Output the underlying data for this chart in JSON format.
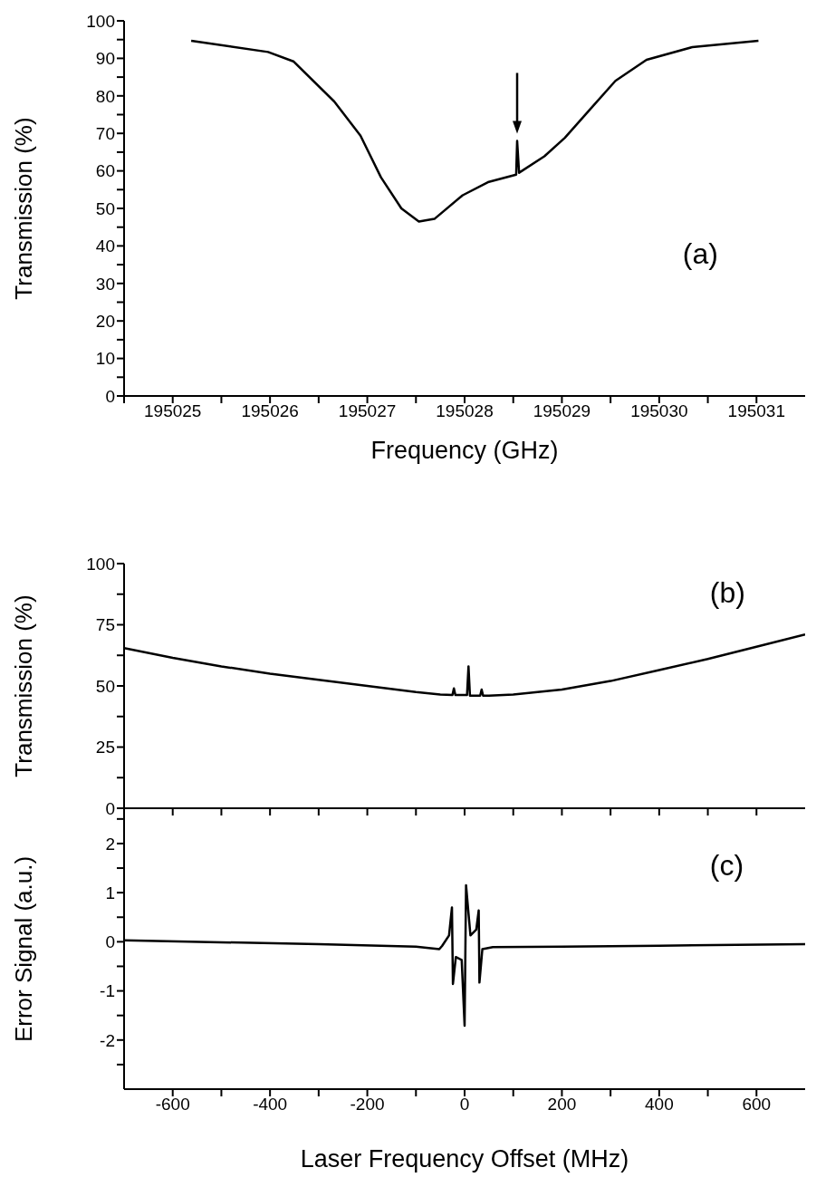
{
  "chart_data": [
    {
      "type": "line",
      "ylabel": "Transmission (%)",
      "xlabel": "Frequency (GHz)",
      "xlim": [
        195024.5,
        195031.5
      ],
      "xticks": [
        {
          "value": 195024.5,
          "label": null
        },
        195025,
        {
          "value": 195025.5,
          "label": null
        },
        195026,
        {
          "value": 195026.5,
          "label": null
        },
        195027,
        {
          "value": 195027.5,
          "label": null
        },
        195028,
        {
          "value": 195028.5,
          "label": null
        },
        195029,
        {
          "value": 195029.5,
          "label": null
        },
        195030,
        {
          "value": 195030.5,
          "label": null
        },
        195031
      ],
      "ylim": [
        0,
        100
      ],
      "yticks": [
        0,
        {
          "value": 5,
          "label": null
        },
        10,
        {
          "value": 15,
          "label": null
        },
        20,
        {
          "value": 25,
          "label": null
        },
        30,
        {
          "value": 35,
          "label": null
        },
        40,
        {
          "value": 45,
          "label": null
        },
        50,
        {
          "value": 55,
          "label": null
        },
        60,
        {
          "value": 65,
          "label": null
        },
        70,
        {
          "value": 75,
          "label": null
        },
        80,
        {
          "value": 85,
          "label": null
        },
        90,
        {
          "value": 95,
          "label": null
        },
        100
      ],
      "annotations": [
        "(a)"
      ],
      "series": [
        {
          "color": "#000000",
          "x": [
            195025.19,
            195025.98,
            195026.24,
            195026.66,
            195026.93,
            195027.14,
            195027.35,
            195027.53,
            195027.69,
            195027.98,
            195028.24,
            195028.53,
            195028.54,
            195028.56,
            195028.82,
            195029.03,
            195029.29,
            195029.55,
            195029.87,
            195030.34,
            195031.02
          ],
          "values": [
            94.7,
            91.7,
            89.2,
            78.5,
            69.4,
            58.3,
            50,
            46.5,
            47.2,
            53.5,
            57,
            59,
            68,
            59.5,
            63.9,
            68.8,
            76.4,
            84,
            89.6,
            93,
            94.7
          ]
        }
      ]
    },
    {
      "type": "line",
      "ylabel": "Transmission (%)",
      "tick_labels": "y",
      "xlim": [
        -700,
        700
      ],
      "xticks": [
        {
          "value": -600,
          "label": null
        },
        {
          "value": -500,
          "label": null
        },
        {
          "value": -400,
          "label": null
        },
        {
          "value": -300,
          "label": null
        },
        {
          "value": -200,
          "label": null
        },
        {
          "value": -100,
          "label": null
        },
        {
          "value": 0,
          "label": null
        },
        {
          "value": 100,
          "label": null
        },
        {
          "value": 200,
          "label": null
        },
        {
          "value": 300,
          "label": null
        },
        {
          "value": 400,
          "label": null
        },
        {
          "value": 500,
          "label": null
        },
        {
          "value": 600,
          "label": null
        }
      ],
      "ylim": [
        0,
        100
      ],
      "yticks": [
        0,
        {
          "value": 12.5,
          "label": null
        },
        25,
        {
          "value": 37.5,
          "label": null
        },
        50,
        {
          "value": 62.5,
          "label": null
        },
        75,
        {
          "value": 87.5,
          "label": null
        },
        100
      ],
      "annotations": [
        "(b)"
      ],
      "series": [
        {
          "color": "#000000",
          "x": [
            -700,
            -600,
            -500,
            -400,
            -300,
            -200,
            -100,
            -50,
            -25,
            -22,
            -19,
            0,
            5,
            8,
            11,
            32,
            35,
            38,
            50,
            100,
            200,
            300,
            400,
            500,
            600,
            700
          ],
          "values": [
            65.5,
            61.5,
            58,
            55,
            52.5,
            50,
            47.5,
            46.5,
            46.3,
            49,
            46.3,
            46.3,
            46.3,
            58,
            46,
            46,
            48.5,
            46,
            46,
            46.5,
            48.5,
            52,
            56.5,
            61,
            66,
            71
          ]
        }
      ]
    },
    {
      "type": "line",
      "ylabel": "Error Signal (a.u.)",
      "xlabel": "Laser Frequency Offset (MHz)",
      "xlim": [
        -700,
        700
      ],
      "xticks": [
        -600,
        {
          "value": -500,
          "label": null
        },
        -400,
        {
          "value": -300,
          "label": null
        },
        -200,
        {
          "value": -100,
          "label": null
        },
        0,
        {
          "value": 100,
          "label": null
        },
        200,
        {
          "value": 300,
          "label": null
        },
        400,
        {
          "value": 500,
          "label": null
        },
        600
      ],
      "ylim": [
        -3,
        2.7
      ],
      "yticks": [
        {
          "value": -2.5,
          "label": null
        },
        -2,
        {
          "value": -1.5,
          "label": null
        },
        -1,
        {
          "value": -0.5,
          "label": null
        },
        0,
        {
          "value": 0.5,
          "label": null
        },
        1,
        {
          "value": 1.5,
          "label": null
        },
        2,
        {
          "value": 2.5,
          "label": null
        }
      ],
      "annotations": [
        "(c)"
      ],
      "series": [
        {
          "color": "#000000",
          "x": [
            -700,
            -300,
            -100,
            -52,
            -46,
            -32,
            -26,
            -24,
            -18,
            -6,
            0,
            3,
            12,
            24,
            29,
            30.5,
            36.5,
            58,
            200,
            400,
            700
          ],
          "values": [
            0.03,
            -0.05,
            -0.1,
            -0.15,
            -0.08,
            0.13,
            0.7,
            -0.86,
            -0.31,
            -0.37,
            -1.71,
            1.15,
            0.13,
            0.25,
            0.64,
            -0.83,
            -0.15,
            -0.11,
            -0.1,
            -0.08,
            -0.05
          ]
        }
      ]
    }
  ]
}
